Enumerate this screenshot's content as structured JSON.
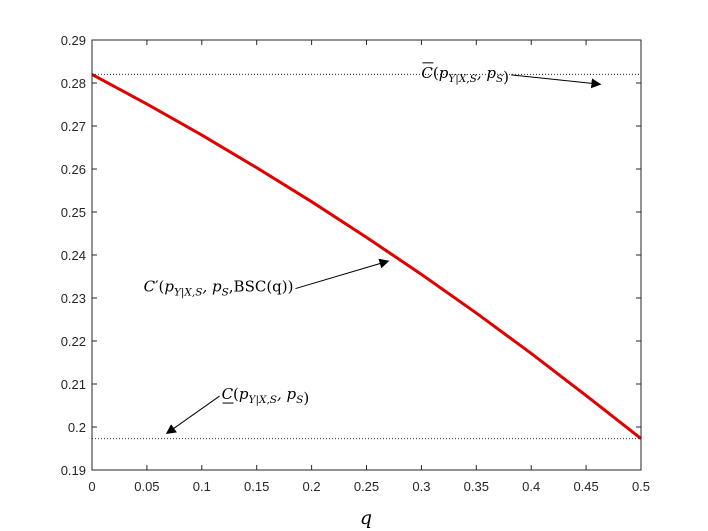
{
  "chart_data": {
    "type": "line",
    "xlabel": "q",
    "ylabel": "",
    "xlim": [
      0,
      0.5
    ],
    "ylim": [
      0.19,
      0.29
    ],
    "x_ticks": [
      "0",
      "0.05",
      "0.1",
      "0.15",
      "0.2",
      "0.25",
      "0.3",
      "0.35",
      "0.4",
      "0.45",
      "0.5"
    ],
    "y_ticks": [
      "0.19",
      "0.2",
      "0.21",
      "0.22",
      "0.23",
      "0.24",
      "0.25",
      "0.26",
      "0.27",
      "0.28",
      "0.29"
    ],
    "grid": false,
    "series": [
      {
        "color": "#e00000",
        "style": "solid",
        "x": [
          0,
          0.05,
          0.1,
          0.15,
          0.2,
          0.25,
          0.3,
          0.35,
          0.4,
          0.45,
          0.5
        ],
        "y": [
          0.282,
          0.2751,
          0.2679,
          0.2603,
          0.2524,
          0.2441,
          0.2355,
          0.2265,
          0.2171,
          0.2073,
          0.1973
        ]
      },
      {
        "color": "#333333",
        "style": "dotted",
        "x": [
          0,
          0.5
        ],
        "y": [
          0.282,
          0.282
        ]
      },
      {
        "color": "#333333",
        "style": "dotted",
        "x": [
          0,
          0.5
        ],
        "y": [
          0.1973,
          0.1973
        ]
      }
    ],
    "annotations": [
      {
        "id": "upper",
        "main": "C",
        "bar": "over",
        "prime": "",
        "open": "(",
        "sub_p": "p",
        "sub_text": "Y|X,S",
        "mid": ", p",
        "sub_s": "S",
        "tail": "",
        "close": ")",
        "text_at": [
          0.3,
          0.2812
        ],
        "arrow_to": [
          0.463,
          0.2797
        ]
      },
      {
        "id": "middle",
        "main": "C",
        "bar": "none",
        "prime": "′",
        "open": "(",
        "sub_p": "p",
        "sub_text": "Y|X,S",
        "mid": ", p",
        "sub_s": "S",
        "tail": ",BSC(q)",
        "close": ")",
        "text_at": [
          0.047,
          0.2315
        ],
        "arrow_to": [
          0.27,
          0.2386
        ]
      },
      {
        "id": "lower",
        "main": "C",
        "bar": "under",
        "prime": "",
        "open": "(",
        "sub_p": "p",
        "sub_text": "Y|X,S",
        "mid": ", p",
        "sub_s": "S",
        "tail": "",
        "close": ")",
        "text_at": [
          0.118,
          0.2065
        ],
        "arrow_to": [
          0.068,
          0.1985
        ]
      }
    ]
  }
}
